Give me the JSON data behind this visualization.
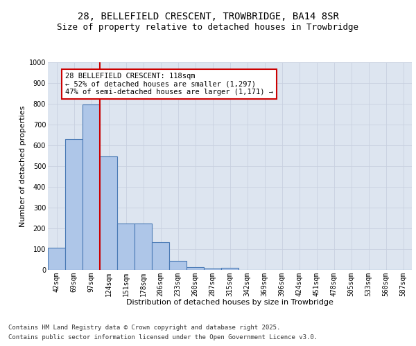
{
  "title1": "28, BELLEFIELD CRESCENT, TROWBRIDGE, BA14 8SR",
  "title2": "Size of property relative to detached houses in Trowbridge",
  "xlabel": "Distribution of detached houses by size in Trowbridge",
  "ylabel": "Number of detached properties",
  "categories": [
    "42sqm",
    "69sqm",
    "97sqm",
    "124sqm",
    "151sqm",
    "178sqm",
    "206sqm",
    "233sqm",
    "260sqm",
    "287sqm",
    "315sqm",
    "342sqm",
    "369sqm",
    "396sqm",
    "424sqm",
    "451sqm",
    "478sqm",
    "505sqm",
    "533sqm",
    "560sqm",
    "587sqm"
  ],
  "values": [
    108,
    630,
    797,
    548,
    222,
    222,
    135,
    42,
    15,
    8,
    10,
    0,
    0,
    0,
    0,
    0,
    0,
    0,
    0,
    0,
    0
  ],
  "bar_color": "#aec6e8",
  "bar_edge_color": "#4a7ab5",
  "bar_edge_width": 0.8,
  "vline_color": "#cc0000",
  "annotation_box_text": "28 BELLEFIELD CRESCENT: 118sqm\n← 52% of detached houses are smaller (1,297)\n47% of semi-detached houses are larger (1,171) →",
  "box_edge_color": "#cc0000",
  "ylim": [
    0,
    1000
  ],
  "yticks": [
    0,
    100,
    200,
    300,
    400,
    500,
    600,
    700,
    800,
    900,
    1000
  ],
  "grid_color": "#c8d0e0",
  "background_color": "#dde5f0",
  "footnote1": "Contains HM Land Registry data © Crown copyright and database right 2025.",
  "footnote2": "Contains public sector information licensed under the Open Government Licence v3.0.",
  "title_fontsize": 10,
  "subtitle_fontsize": 9,
  "axis_label_fontsize": 8,
  "tick_fontsize": 7,
  "annotation_fontsize": 7.5,
  "footnote_fontsize": 6.5
}
